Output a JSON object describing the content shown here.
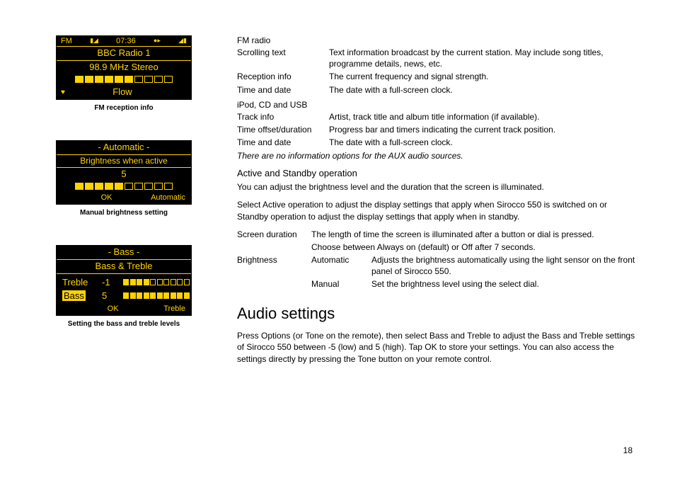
{
  "page_number": "18",
  "lcd1": {
    "status_left": "FM",
    "status_time": "07:36",
    "title": "BBC Radio 1",
    "freq": "98.9 MHz Stereo",
    "bar_total": 10,
    "bar_filled": 6,
    "heart": "♥",
    "bottom_text": "Flow",
    "caption": "FM reception info"
  },
  "lcd2": {
    "header": "- Automatic -",
    "title": "Brightness when active",
    "value": "5",
    "bar_total": 10,
    "bar_filled": 5,
    "ok": "OK",
    "right": "Automatic",
    "caption": "Manual brightness setting"
  },
  "lcd3": {
    "header": "- Bass -",
    "title": "Bass & Treble",
    "treble_label": "Treble",
    "treble_val": "-1",
    "bass_label": "Bass",
    "bass_val": "5",
    "treble_bar_filled": 4,
    "bass_bar_filled": 10,
    "bar_total": 10,
    "ok": "OK",
    "right": "Treble",
    "caption": "Setting the bass and treble levels"
  },
  "fm_heading": "FM radio",
  "fm_rows": [
    {
      "term": "Scrolling text",
      "desc": "Text information broadcast by the current station. May include song titles, programme details, news, etc."
    },
    {
      "term": "Reception info",
      "desc": "The current frequency and signal strength."
    },
    {
      "term": "Time and date",
      "desc": "The date with a full-screen clock."
    }
  ],
  "ipod_heading": "iPod, CD and USB",
  "ipod_rows": [
    {
      "term": "Track info",
      "desc": "Artist, track title and album title information (if available)."
    },
    {
      "term": "Time offset/duration",
      "desc": "Progress bar and timers indicating the current track position."
    },
    {
      "term": "Time and date",
      "desc": "The date with a full-screen clock."
    }
  ],
  "aux_note": "There are no information options for the AUX audio sources.",
  "active_heading": "Active and Standby operation",
  "active_intro1": "You can adjust the brightness level and the duration that the screen is illuminated.",
  "active_intro2a": "Select ",
  "active_intro2b": "Active operation",
  "active_intro2c": " to adjust the display settings that apply when Sirocco 550 is switched on or ",
  "active_intro2d": "Standby operation",
  "active_intro2e": " to adjust the display settings that apply when in standby.",
  "sd": {
    "term": "Screen duration",
    "line1": "The length of time the screen is illuminated after a button or dial is pressed.",
    "line2a": "Choose between ",
    "line2b": "Always on",
    "line2c": " (default) or ",
    "line2d": "Off after 7 seconds",
    "line2e": "."
  },
  "bright": {
    "term": "Brightness",
    "auto_label": "Automatic",
    "auto_desc": "Adjusts the brightness automatically using the light sensor on the front panel of Sirocco 550.",
    "manual_label": "Manual",
    "manual_desc": "Set the brightness level using the select dial."
  },
  "audio_heading": "Audio settings",
  "audio_p1a": "Press Options (or Tone on the remote), then select ",
  "audio_p1b": "Bass and Treble",
  "audio_p1c": " to adjust the Bass and Treble settings of Sirocco 550 between -5 (low) and 5 (high). Tap OK to store your settings. You can also access the settings directly by pressing the Tone button on your remote control."
}
